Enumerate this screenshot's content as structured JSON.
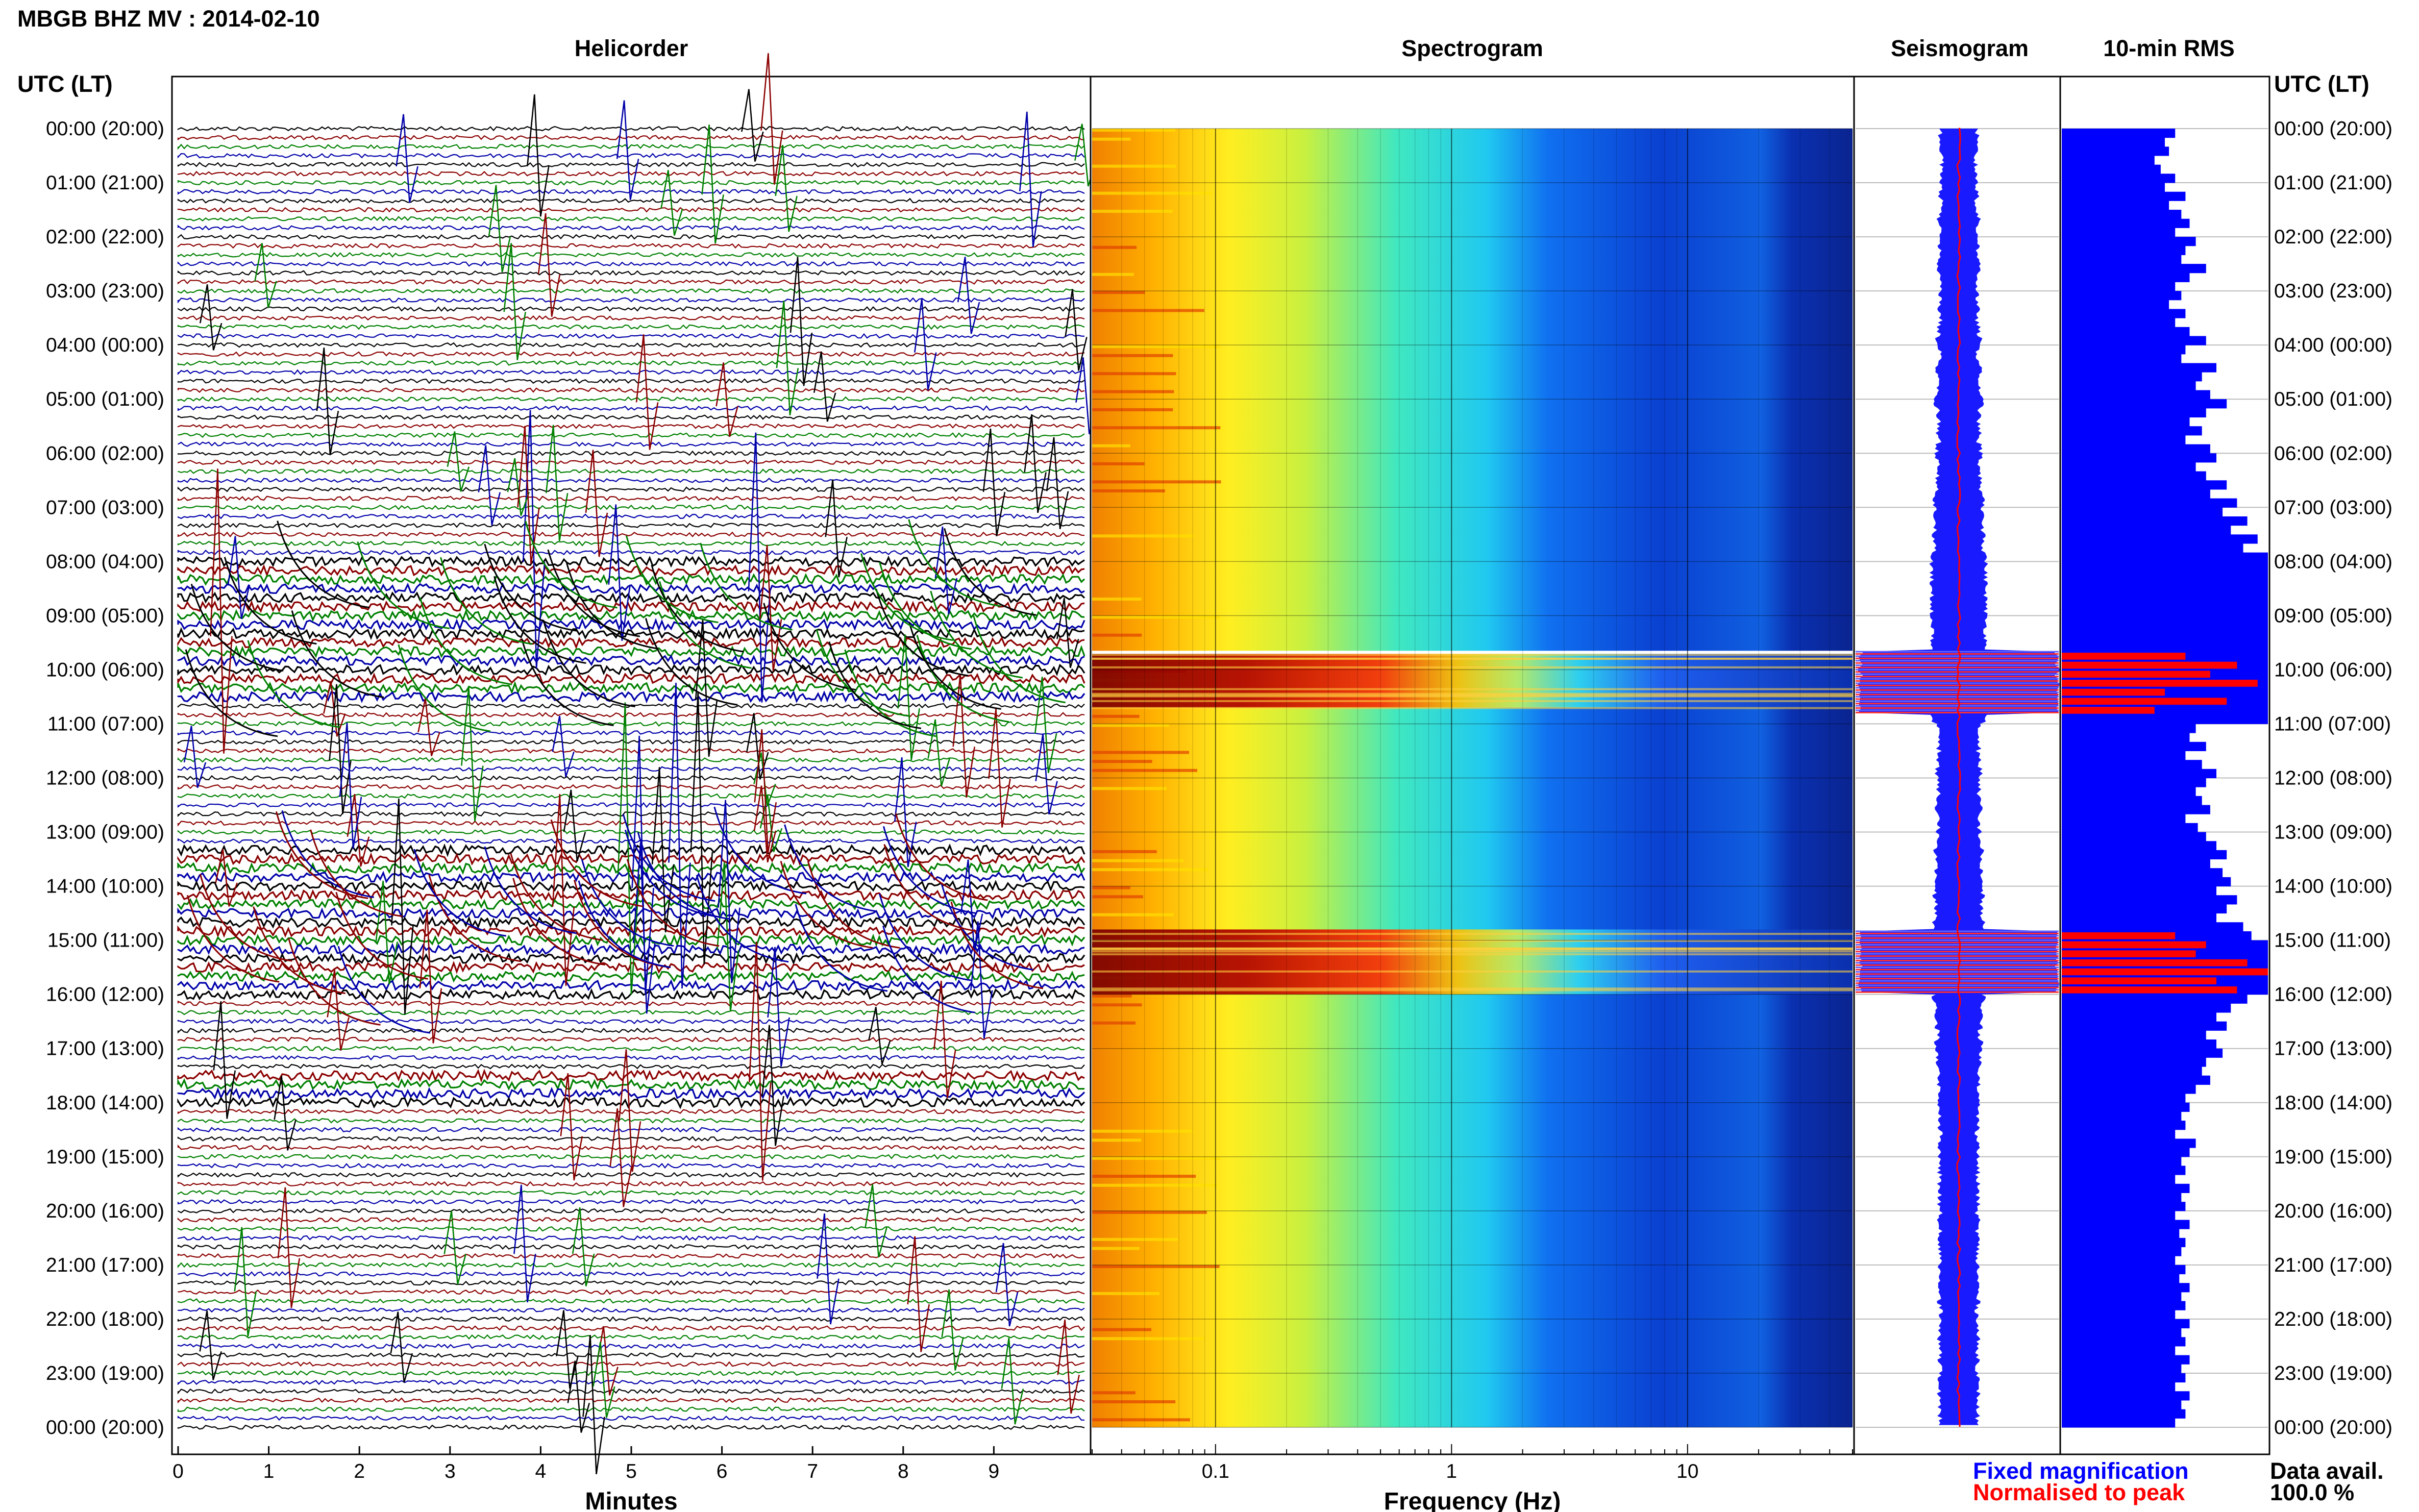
{
  "title": "MBGB BHZ MV : 2014-02-10",
  "panels": {
    "helicorder": "Helicorder",
    "spectrogram": "Spectrogram",
    "seismogram": "Seismogram",
    "rms": "10-min RMS"
  },
  "time_axis_label": "UTC (LT)",
  "time_labels": [
    "00:00 (20:00)",
    "01:00 (21:00)",
    "02:00 (22:00)",
    "03:00 (23:00)",
    "04:00 (00:00)",
    "05:00 (01:00)",
    "06:00 (02:00)",
    "07:00 (03:00)",
    "08:00 (04:00)",
    "09:00 (05:00)",
    "10:00 (06:00)",
    "11:00 (07:00)",
    "12:00 (08:00)",
    "13:00 (09:00)",
    "14:00 (10:00)",
    "15:00 (11:00)",
    "16:00 (12:00)",
    "17:00 (13:00)",
    "18:00 (14:00)",
    "19:00 (15:00)",
    "20:00 (16:00)",
    "21:00 (17:00)",
    "22:00 (18:00)",
    "23:00 (19:00)",
    "00:00 (20:00)"
  ],
  "x_axes": {
    "minutes": {
      "label": "Minutes",
      "ticks": [
        "0",
        "1",
        "2",
        "3",
        "4",
        "5",
        "6",
        "7",
        "8",
        "9"
      ]
    },
    "frequency": {
      "label": "Frequency (Hz)",
      "ticks": [
        "0.1",
        "1",
        "10"
      ],
      "scale": "log"
    }
  },
  "legend": {
    "fixed": "Fixed magnification",
    "normalised": "Normalised to peak",
    "data_avail_label": "Data avail.",
    "data_avail_value": "100.0 %"
  },
  "colors": {
    "helicorder_traces": [
      "#000000",
      "#8b0000",
      "#008000",
      "#0000aa"
    ],
    "fixed": "#0000ff",
    "normalised": "#ff0000"
  },
  "chart_data": [
    {
      "type": "line",
      "panel": "Helicorder",
      "xlabel": "Minutes",
      "xlim": [
        0,
        10
      ],
      "y_range_hours_utc": [
        0,
        24
      ],
      "lines_per_hour": 6,
      "trace_colors_cycle": [
        "black",
        "darkred",
        "green",
        "blue"
      ],
      "high_activity_hours_utc": [
        [
          8.0,
          10.5
        ],
        [
          13.3,
          16.0
        ],
        [
          17.5,
          18.0
        ]
      ]
    },
    {
      "type": "heatmap",
      "panel": "Spectrogram",
      "xlabel": "Frequency (Hz)",
      "xscale": "log",
      "xlim": [
        0.03,
        50
      ],
      "x_ticks": [
        0.1,
        1,
        10
      ],
      "y_range_hours_utc": [
        0,
        24
      ],
      "colormap": "jet",
      "intense_bands_hours_utc": [
        [
          9.7,
          10.7
        ],
        [
          14.8,
          16.0
        ]
      ]
    },
    {
      "type": "bar",
      "panel": "10-min RMS",
      "bin_minutes": 10,
      "y_range_hours_utc": [
        0,
        24
      ],
      "units": "relative",
      "series": [
        {
          "name": "Fixed magnification",
          "values": [
            0.55,
            0.5,
            0.52,
            0.45,
            0.48,
            0.55,
            0.5,
            0.6,
            0.52,
            0.58,
            0.62,
            0.55,
            0.65,
            0.6,
            0.58,
            0.7,
            0.62,
            0.55,
            0.58,
            0.52,
            0.6,
            0.55,
            0.62,
            0.7,
            0.6,
            0.58,
            0.75,
            0.68,
            0.65,
            0.72,
            0.8,
            0.7,
            0.62,
            0.68,
            0.6,
            0.72,
            0.75,
            0.65,
            0.7,
            0.8,
            0.72,
            0.85,
            0.78,
            0.9,
            0.82,
            0.95,
            0.88,
            1.0,
            1.0,
            1.0,
            1.0,
            1.0,
            1.0,
            1.0,
            1.0,
            1.0,
            1.0,
            1.0,
            1.0,
            1.0,
            1.0,
            1.0,
            1.0,
            1.0,
            1.0,
            1.0,
            0.65,
            0.62,
            0.7,
            0.6,
            0.68,
            0.75,
            0.7,
            0.65,
            0.68,
            0.72,
            0.6,
            0.66,
            0.7,
            0.75,
            0.8,
            0.72,
            0.78,
            0.82,
            0.75,
            0.85,
            0.8,
            0.75,
            0.88,
            0.92,
            1.0,
            1.0,
            1.0,
            1.0,
            1.0,
            1.0,
            0.9,
            0.82,
            0.75,
            0.8,
            0.7,
            0.75,
            0.78,
            0.7,
            0.68,
            0.72,
            0.65,
            0.6,
            0.62,
            0.58,
            0.6,
            0.55,
            0.65,
            0.62,
            0.58,
            0.6,
            0.55,
            0.62,
            0.58,
            0.6,
            0.55,
            0.62,
            0.57,
            0.6,
            0.58,
            0.55,
            0.6,
            0.57,
            0.62,
            0.58,
            0.6,
            0.55,
            0.62,
            0.58,
            0.6,
            0.55,
            0.62,
            0.58,
            0.6,
            0.55,
            0.62,
            0.58,
            0.6,
            0.55
          ]
        },
        {
          "name": "Normalised to peak",
          "values": [
            0.05,
            0.05,
            0.05,
            0.05,
            0.05,
            0.05,
            0.05,
            0.05,
            0.05,
            0.05,
            0.05,
            0.05,
            0.05,
            0.05,
            0.05,
            0.05,
            0.05,
            0.05,
            0.05,
            0.05,
            0.05,
            0.05,
            0.05,
            0.05,
            0.05,
            0.05,
            0.05,
            0.05,
            0.05,
            0.05,
            0.05,
            0.05,
            0.05,
            0.05,
            0.05,
            0.05,
            0.05,
            0.05,
            0.05,
            0.05,
            0.05,
            0.05,
            0.05,
            0.05,
            0.05,
            0.05,
            0.05,
            0.05,
            0.05,
            0.05,
            0.05,
            0.05,
            0.05,
            0.05,
            0.05,
            0.05,
            0.05,
            0.05,
            0.6,
            0.85,
            0.72,
            0.95,
            0.5,
            0.8,
            0.45,
            0.05,
            0.05,
            0.05,
            0.05,
            0.05,
            0.05,
            0.05,
            0.05,
            0.05,
            0.05,
            0.05,
            0.05,
            0.05,
            0.05,
            0.05,
            0.05,
            0.05,
            0.05,
            0.05,
            0.05,
            0.05,
            0.05,
            0.05,
            0.05,
            0.55,
            0.7,
            0.65,
            0.9,
            1.0,
            0.75,
            0.85,
            0.05,
            0.05,
            0.05,
            0.05,
            0.05,
            0.05,
            0.05,
            0.05,
            0.05,
            0.05,
            0.05,
            0.05,
            0.05,
            0.05,
            0.05,
            0.05,
            0.05,
            0.05,
            0.05,
            0.05,
            0.05,
            0.05,
            0.05,
            0.05,
            0.05,
            0.05,
            0.05,
            0.05,
            0.05,
            0.05,
            0.05,
            0.05,
            0.05,
            0.05,
            0.05,
            0.05,
            0.05,
            0.05,
            0.05,
            0.05,
            0.05,
            0.05,
            0.05,
            0.05,
            0.05,
            0.05,
            0.05,
            0.05
          ]
        }
      ]
    }
  ]
}
